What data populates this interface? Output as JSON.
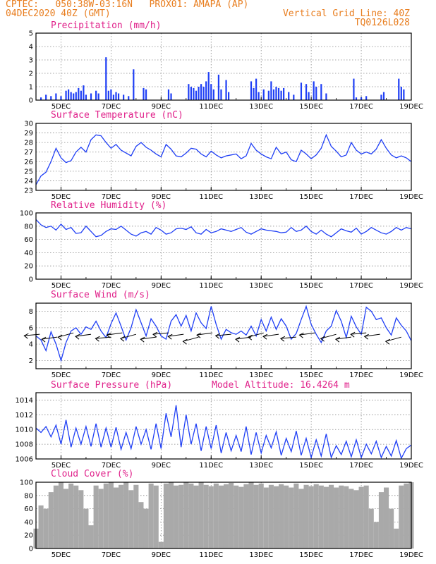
{
  "header": {
    "line1": "CPTEC:   050:38W-03:16N   PROX01: AMAPA (AP)",
    "line2": "04DEC2020 40Z (GMT)",
    "vertical_grid": "Vertical Grid Line: 40Z",
    "code": "TQ0126L028"
  },
  "colors": {
    "series": "#1f3ff5",
    "cloud": "#a9a9a9",
    "header": "#e87d1e",
    "title": "#e0208a"
  },
  "x_ticks": [
    "5DEC",
    "7DEC",
    "9DEC",
    "11DEC",
    "13DEC",
    "15DEC",
    "17DEC",
    "19DEC"
  ],
  "model_altitude": "Model Altitude: 16.4264 m",
  "chart_data": [
    {
      "type": "bar",
      "title": "Precipitation (mm/h)",
      "ylim": [
        0,
        5
      ],
      "yticks": [
        "0",
        "1",
        "2",
        "3",
        "4",
        "5"
      ],
      "grid": true,
      "x_range_days": [
        4.0,
        19.0
      ],
      "values": [
        [
          4.2,
          0.2
        ],
        [
          4.4,
          0.4
        ],
        [
          4.6,
          0.3
        ],
        [
          4.8,
          0.5
        ],
        [
          5.0,
          0.3
        ],
        [
          5.2,
          0.7
        ],
        [
          5.3,
          0.8
        ],
        [
          5.4,
          0.6
        ],
        [
          5.5,
          0.5
        ],
        [
          5.6,
          0.6
        ],
        [
          5.7,
          0.9
        ],
        [
          5.8,
          0.7
        ],
        [
          5.9,
          1.1
        ],
        [
          6.0,
          0.4
        ],
        [
          6.2,
          0.5
        ],
        [
          6.4,
          0.7
        ],
        [
          6.5,
          0.5
        ],
        [
          6.8,
          3.2
        ],
        [
          6.9,
          0.7
        ],
        [
          7.0,
          0.8
        ],
        [
          7.1,
          0.4
        ],
        [
          7.2,
          0.6
        ],
        [
          7.3,
          0.5
        ],
        [
          7.5,
          0.4
        ],
        [
          7.7,
          0.3
        ],
        [
          7.9,
          2.3
        ],
        [
          8.3,
          0.9
        ],
        [
          8.4,
          0.8
        ],
        [
          9.3,
          0.8
        ],
        [
          9.4,
          0.5
        ],
        [
          10.1,
          1.2
        ],
        [
          10.2,
          1.0
        ],
        [
          10.3,
          0.9
        ],
        [
          10.4,
          0.7
        ],
        [
          10.5,
          1.0
        ],
        [
          10.6,
          1.2
        ],
        [
          10.7,
          1.0
        ],
        [
          10.8,
          1.4
        ],
        [
          10.9,
          2.1
        ],
        [
          11.0,
          1.2
        ],
        [
          11.1,
          0.8
        ],
        [
          11.3,
          1.9
        ],
        [
          11.4,
          0.8
        ],
        [
          11.6,
          1.5
        ],
        [
          11.7,
          0.6
        ],
        [
          12.6,
          1.4
        ],
        [
          12.7,
          0.9
        ],
        [
          12.8,
          1.6
        ],
        [
          12.9,
          0.6
        ],
        [
          13.1,
          0.8
        ],
        [
          13.3,
          0.7
        ],
        [
          13.4,
          1.4
        ],
        [
          13.5,
          0.8
        ],
        [
          13.6,
          1.0
        ],
        [
          13.7,
          0.9
        ],
        [
          13.8,
          0.7
        ],
        [
          13.9,
          0.9
        ],
        [
          14.1,
          0.6
        ],
        [
          14.3,
          0.4
        ],
        [
          14.6,
          1.3
        ],
        [
          14.8,
          1.2
        ],
        [
          14.9,
          0.6
        ],
        [
          15.1,
          1.4
        ],
        [
          15.2,
          1.0
        ],
        [
          15.4,
          1.2
        ],
        [
          15.6,
          0.5
        ],
        [
          16.7,
          1.6
        ],
        [
          16.8,
          0.2
        ],
        [
          17.0,
          0.2
        ],
        [
          17.2,
          0.3
        ],
        [
          17.8,
          0.4
        ],
        [
          17.9,
          0.6
        ],
        [
          18.5,
          1.6
        ],
        [
          18.6,
          1.0
        ],
        [
          18.7,
          0.8
        ]
      ]
    },
    {
      "type": "line",
      "title": "Surface Temperature (nC)",
      "ylim": [
        23,
        30
      ],
      "yticks": [
        "23",
        "24",
        "25",
        "26",
        "27",
        "28",
        "29",
        "30"
      ],
      "grid": true,
      "x": [
        4.0,
        4.2,
        4.4,
        4.6,
        4.8,
        5.0,
        5.2,
        5.4,
        5.6,
        5.8,
        6.0,
        6.2,
        6.4,
        6.6,
        6.8,
        7.0,
        7.2,
        7.4,
        7.6,
        7.8,
        8.0,
        8.2,
        8.4,
        8.6,
        8.8,
        9.0,
        9.2,
        9.4,
        9.6,
        9.8,
        10.0,
        10.2,
        10.4,
        10.6,
        10.8,
        11.0,
        11.2,
        11.4,
        11.6,
        11.8,
        12.0,
        12.2,
        12.4,
        12.6,
        12.8,
        13.0,
        13.2,
        13.4,
        13.6,
        13.8,
        14.0,
        14.2,
        14.4,
        14.6,
        14.8,
        15.0,
        15.2,
        15.4,
        15.6,
        15.8,
        16.0,
        16.2,
        16.4,
        16.6,
        16.8,
        17.0,
        17.2,
        17.4,
        17.6,
        17.8,
        18.0,
        18.2,
        18.4,
        18.6,
        18.8,
        19.0
      ],
      "values": [
        23.6,
        24.5,
        24.9,
        26.0,
        27.4,
        26.4,
        25.9,
        26.1,
        27.0,
        27.5,
        27.0,
        28.3,
        28.8,
        28.7,
        28.0,
        27.4,
        27.8,
        27.2,
        26.9,
        26.6,
        27.6,
        28.0,
        27.5,
        27.2,
        26.8,
        26.5,
        27.8,
        27.3,
        26.6,
        26.5,
        26.9,
        27.4,
        27.3,
        26.8,
        26.5,
        27.1,
        26.7,
        26.4,
        26.6,
        26.7,
        26.8,
        26.3,
        26.6,
        27.9,
        27.2,
        26.8,
        26.5,
        26.3,
        27.5,
        26.8,
        27.0,
        26.2,
        26.0,
        27.2,
        26.8,
        26.3,
        26.7,
        27.4,
        28.8,
        27.6,
        27.1,
        26.5,
        26.7,
        28.0,
        27.2,
        26.8,
        27.0,
        26.8,
        27.3,
        28.3,
        27.4,
        26.7,
        26.4,
        26.6,
        26.4,
        26.0
      ],
      "xlabel": "",
      "ylabel": ""
    },
    {
      "type": "line",
      "title": "Relative Humidity (%)",
      "ylim": [
        0,
        100
      ],
      "yticks": [
        "0",
        "20",
        "40",
        "60",
        "80",
        "100"
      ],
      "grid": true,
      "x": [
        4.0,
        4.2,
        4.4,
        4.6,
        4.8,
        5.0,
        5.2,
        5.4,
        5.6,
        5.8,
        6.0,
        6.2,
        6.4,
        6.6,
        6.8,
        7.0,
        7.2,
        7.4,
        7.6,
        7.8,
        8.0,
        8.2,
        8.4,
        8.6,
        8.8,
        9.0,
        9.2,
        9.4,
        9.6,
        9.8,
        10.0,
        10.2,
        10.4,
        10.6,
        10.8,
        11.0,
        11.2,
        11.4,
        11.6,
        11.8,
        12.0,
        12.2,
        12.4,
        12.6,
        12.8,
        13.0,
        13.2,
        13.4,
        13.6,
        13.8,
        14.0,
        14.2,
        14.4,
        14.6,
        14.8,
        15.0,
        15.2,
        15.4,
        15.6,
        15.8,
        16.0,
        16.2,
        16.4,
        16.6,
        16.8,
        17.0,
        17.2,
        17.4,
        17.6,
        17.8,
        18.0,
        18.2,
        18.4,
        18.6,
        18.8,
        19.0
      ],
      "values": [
        90,
        82,
        78,
        80,
        74,
        83,
        75,
        78,
        69,
        70,
        80,
        72,
        64,
        66,
        72,
        76,
        75,
        80,
        74,
        68,
        65,
        70,
        72,
        68,
        78,
        74,
        68,
        70,
        76,
        77,
        75,
        79,
        70,
        68,
        75,
        70,
        72,
        76,
        74,
        72,
        75,
        78,
        71,
        68,
        72,
        76,
        74,
        73,
        72,
        70,
        71,
        78,
        72,
        74,
        80,
        72,
        68,
        74,
        68,
        64,
        70,
        76,
        73,
        71,
        77,
        68,
        72,
        78,
        74,
        70,
        68,
        72,
        78,
        74,
        78,
        76
      ]
    },
    {
      "type": "line",
      "title": "Surface Wind (m/s)",
      "ylim": [
        1,
        9
      ],
      "yticks": [
        "2",
        "4",
        "6",
        "8"
      ],
      "grid": true,
      "x": [
        4.0,
        4.2,
        4.4,
        4.6,
        4.8,
        5.0,
        5.2,
        5.4,
        5.6,
        5.8,
        6.0,
        6.2,
        6.4,
        6.6,
        6.8,
        7.0,
        7.2,
        7.4,
        7.6,
        7.8,
        8.0,
        8.2,
        8.4,
        8.6,
        8.8,
        9.0,
        9.2,
        9.4,
        9.6,
        9.8,
        10.0,
        10.2,
        10.4,
        10.6,
        10.8,
        11.0,
        11.2,
        11.4,
        11.6,
        11.8,
        12.0,
        12.2,
        12.4,
        12.6,
        12.8,
        13.0,
        13.2,
        13.4,
        13.6,
        13.8,
        14.0,
        14.2,
        14.4,
        14.6,
        14.8,
        15.0,
        15.2,
        15.4,
        15.6,
        15.8,
        16.0,
        16.2,
        16.4,
        16.6,
        16.8,
        17.0,
        17.2,
        17.4,
        17.6,
        17.8,
        18.0,
        18.2,
        18.4,
        18.6,
        18.8,
        19.0
      ],
      "values": [
        5.0,
        4.5,
        3.2,
        5.5,
        4.0,
        2.0,
        4.2,
        5.6,
        6.0,
        5.2,
        6.1,
        5.8,
        6.8,
        5.6,
        4.8,
        6.5,
        7.8,
        6.2,
        4.5,
        6.0,
        8.2,
        6.6,
        5.0,
        7.1,
        6.2,
        5.0,
        4.6,
        6.8,
        7.6,
        6.2,
        7.5,
        5.6,
        7.8,
        6.6,
        5.9,
        8.6,
        6.4,
        4.6,
        5.8,
        5.4,
        5.2,
        5.6,
        5.1,
        6.2,
        5.0,
        7.0,
        5.6,
        7.3,
        5.8,
        7.1,
        6.2,
        4.6,
        5.3,
        7.0,
        8.6,
        6.4,
        5.2,
        4.2,
        5.6,
        6.2,
        8.1,
        6.8,
        4.8,
        7.4,
        6.1,
        5.2,
        8.5,
        8.0,
        7.0,
        7.2,
        6.0,
        5.1,
        7.2,
        6.3,
        5.6,
        4.4
      ],
      "vectors_x": [
        4.15,
        4.85,
        5.5,
        6.2,
        7.0,
        7.45,
        8.0,
        8.8,
        9.3,
        9.9,
        10.5,
        11.05,
        11.8,
        12.6,
        13.1,
        13.7,
        14.4,
        15.15,
        16.0,
        16.6,
        17.2,
        17.75,
        18.6
      ]
    },
    {
      "type": "line",
      "title": "Surface Pressure (hPa)",
      "ylim": [
        1006,
        1015
      ],
      "yticks": [
        "1006",
        "1008",
        "1010",
        "1012",
        "1014"
      ],
      "grid": true,
      "x": [
        4.0,
        4.2,
        4.4,
        4.6,
        4.8,
        5.0,
        5.2,
        5.4,
        5.6,
        5.8,
        6.0,
        6.2,
        6.4,
        6.6,
        6.8,
        7.0,
        7.2,
        7.4,
        7.6,
        7.8,
        8.0,
        8.2,
        8.4,
        8.6,
        8.8,
        9.0,
        9.2,
        9.4,
        9.6,
        9.8,
        10.0,
        10.2,
        10.4,
        10.6,
        10.8,
        11.0,
        11.2,
        11.4,
        11.6,
        11.8,
        12.0,
        12.2,
        12.4,
        12.6,
        12.8,
        13.0,
        13.2,
        13.4,
        13.6,
        13.8,
        14.0,
        14.2,
        14.4,
        14.6,
        14.8,
        15.0,
        15.2,
        15.4,
        15.6,
        15.8,
        16.0,
        16.2,
        16.4,
        16.6,
        16.8,
        17.0,
        17.2,
        17.4,
        17.6,
        17.8,
        18.0,
        18.2,
        18.4,
        18.6,
        18.8,
        19.0
      ],
      "values": [
        1010.2,
        1009.6,
        1010.4,
        1009.0,
        1010.6,
        1008.0,
        1011.3,
        1007.6,
        1010.2,
        1008.0,
        1010.4,
        1007.7,
        1010.8,
        1007.6,
        1010.2,
        1007.6,
        1010.3,
        1007.3,
        1009.6,
        1007.4,
        1010.4,
        1008.0,
        1010.0,
        1007.3,
        1010.8,
        1007.4,
        1012.2,
        1009.0,
        1013.3,
        1007.6,
        1012.0,
        1008.0,
        1010.8,
        1007.1,
        1010.4,
        1007.4,
        1010.6,
        1006.8,
        1009.6,
        1007.1,
        1009.2,
        1007.0,
        1010.4,
        1006.6,
        1009.6,
        1006.8,
        1009.2,
        1007.5,
        1009.7,
        1006.5,
        1008.8,
        1007.0,
        1009.8,
        1006.5,
        1008.8,
        1006.2,
        1008.6,
        1006.4,
        1009.4,
        1006.2,
        1007.8,
        1006.6,
        1008.4,
        1006.3,
        1008.6,
        1006.2,
        1008.0,
        1006.7,
        1008.4,
        1006.2,
        1007.7,
        1006.4,
        1008.5,
        1006.1,
        1007.4,
        1007.9
      ]
    },
    {
      "type": "area",
      "title": "Cloud Cover (%)",
      "ylim": [
        0,
        100
      ],
      "yticks": [
        "0",
        "20",
        "40",
        "60",
        "80",
        "100"
      ],
      "grid": true,
      "x": [
        4.0,
        4.2,
        4.4,
        4.6,
        4.8,
        5.0,
        5.2,
        5.4,
        5.6,
        5.8,
        6.0,
        6.2,
        6.4,
        6.6,
        6.8,
        7.0,
        7.2,
        7.4,
        7.6,
        7.8,
        8.0,
        8.2,
        8.4,
        8.6,
        8.8,
        9.0,
        9.2,
        9.4,
        9.6,
        9.8,
        10.0,
        10.2,
        10.4,
        10.6,
        10.8,
        11.0,
        11.2,
        11.4,
        11.6,
        11.8,
        12.0,
        12.2,
        12.4,
        12.6,
        12.8,
        13.0,
        13.2,
        13.4,
        13.6,
        13.8,
        14.0,
        14.2,
        14.4,
        14.6,
        14.8,
        15.0,
        15.2,
        15.4,
        15.6,
        15.8,
        16.0,
        16.2,
        16.4,
        16.6,
        16.8,
        17.0,
        17.2,
        17.4,
        17.6,
        17.8,
        18.0,
        18.2,
        18.4,
        18.6,
        18.8,
        19.0
      ],
      "values": [
        30,
        65,
        60,
        85,
        95,
        100,
        90,
        98,
        95,
        88,
        60,
        35,
        95,
        90,
        98,
        100,
        92,
        96,
        100,
        88,
        96,
        70,
        60,
        98,
        95,
        10,
        98,
        100,
        95,
        96,
        100,
        98,
        95,
        100,
        96,
        94,
        98,
        95,
        97,
        99,
        95,
        93,
        97,
        100,
        96,
        98,
        92,
        96,
        94,
        97,
        95,
        92,
        98,
        90,
        96,
        94,
        97,
        95,
        93,
        96,
        92,
        95,
        94,
        90,
        88,
        93,
        95,
        60,
        40,
        85,
        92,
        60,
        30,
        95,
        98,
        100
      ]
    }
  ]
}
